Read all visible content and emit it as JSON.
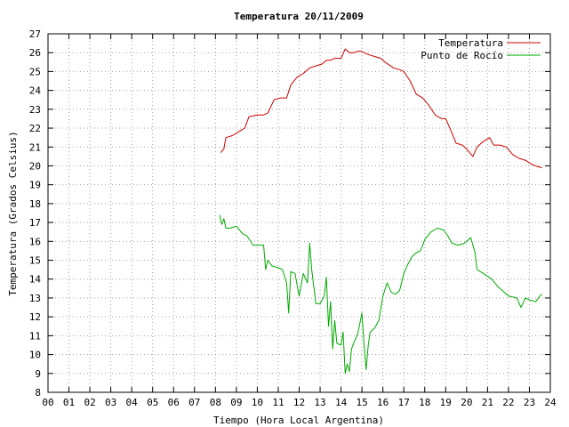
{
  "chart_data": {
    "type": "line",
    "title": "Temperatura 20/11/2009",
    "xlabel": "Tiempo (Hora Local Argentina)",
    "ylabel": "Temperatura (Grados Celsius)",
    "xlim": [
      0,
      24
    ],
    "ylim": [
      8,
      27
    ],
    "xticks": [
      "00",
      "01",
      "02",
      "03",
      "04",
      "05",
      "06",
      "07",
      "08",
      "09",
      "10",
      "11",
      "12",
      "13",
      "14",
      "15",
      "16",
      "17",
      "18",
      "19",
      "20",
      "21",
      "22",
      "23",
      "24"
    ],
    "yticks": [
      8,
      9,
      10,
      11,
      12,
      13,
      14,
      15,
      16,
      17,
      18,
      19,
      20,
      21,
      22,
      23,
      24,
      25,
      26,
      27
    ],
    "grid": true,
    "legend": "top-right",
    "series": [
      {
        "name": "Temperatura",
        "color": "#cc0000",
        "x": [
          8.25,
          8.4,
          8.5,
          8.8,
          9.1,
          9.4,
          9.6,
          10.0,
          10.3,
          10.5,
          10.8,
          11.1,
          11.4,
          11.6,
          11.9,
          12.2,
          12.5,
          12.8,
          13.1,
          13.3,
          13.5,
          13.7,
          14.0,
          14.2,
          14.4,
          14.6,
          14.9,
          15.1,
          15.3,
          15.6,
          15.9,
          16.1,
          16.5,
          16.8,
          17.0,
          17.3,
          17.6,
          17.9,
          18.2,
          18.5,
          18.8,
          19.0,
          19.2,
          19.5,
          19.8,
          20.0,
          20.3,
          20.5,
          20.8,
          21.1,
          21.3,
          21.6,
          21.9,
          22.2,
          22.5,
          22.8,
          23.1,
          23.3,
          23.6
        ],
        "y": [
          20.7,
          20.9,
          21.5,
          21.6,
          21.8,
          22.0,
          22.6,
          22.7,
          22.7,
          22.8,
          23.5,
          23.6,
          23.6,
          24.3,
          24.7,
          24.9,
          25.2,
          25.3,
          25.4,
          25.6,
          25.6,
          25.7,
          25.7,
          26.2,
          26.0,
          26.0,
          26.1,
          26.0,
          25.9,
          25.8,
          25.7,
          25.5,
          25.2,
          25.1,
          25.0,
          24.5,
          23.8,
          23.6,
          23.2,
          22.7,
          22.5,
          22.5,
          22.0,
          21.2,
          21.1,
          20.9,
          20.5,
          21.0,
          21.3,
          21.5,
          21.1,
          21.1,
          21.0,
          20.6,
          20.4,
          20.3,
          20.1,
          20.0,
          19.9
        ]
      },
      {
        "name": "Punto de Rocío",
        "color": "#00aa00",
        "x": [
          8.2,
          8.3,
          8.4,
          8.5,
          8.7,
          9.0,
          9.3,
          9.5,
          9.8,
          10.0,
          10.3,
          10.4,
          10.5,
          10.7,
          11.0,
          11.2,
          11.4,
          11.5,
          11.6,
          11.8,
          12.0,
          12.2,
          12.4,
          12.5,
          12.6,
          12.8,
          13.0,
          13.2,
          13.3,
          13.4,
          13.5,
          13.6,
          13.7,
          13.8,
          14.0,
          14.1,
          14.2,
          14.3,
          14.4,
          14.5,
          14.6,
          14.8,
          15.0,
          15.1,
          15.2,
          15.3,
          15.4,
          15.6,
          15.8,
          16.0,
          16.2,
          16.4,
          16.6,
          16.8,
          17.0,
          17.2,
          17.4,
          17.6,
          17.8,
          18.0,
          18.3,
          18.6,
          18.9,
          19.1,
          19.3,
          19.6,
          19.9,
          20.2,
          20.4,
          20.5,
          20.8,
          21.2,
          21.5,
          22.0,
          22.4,
          22.6,
          22.8,
          23.0,
          23.3,
          23.5,
          23.6
        ],
        "y": [
          17.4,
          16.9,
          17.2,
          16.7,
          16.7,
          16.8,
          16.4,
          16.3,
          15.8,
          15.8,
          15.8,
          14.5,
          15.0,
          14.7,
          14.6,
          14.5,
          13.8,
          12.2,
          14.4,
          14.3,
          13.1,
          14.3,
          13.8,
          15.9,
          14.5,
          12.7,
          12.7,
          13.1,
          14.1,
          11.5,
          12.8,
          10.3,
          11.8,
          10.6,
          10.5,
          11.2,
          9.0,
          9.5,
          9.1,
          10.3,
          10.6,
          11.1,
          12.2,
          10.5,
          9.2,
          10.5,
          11.2,
          11.4,
          11.8,
          13.1,
          13.8,
          13.3,
          13.2,
          13.4,
          14.3,
          14.8,
          15.2,
          15.4,
          15.5,
          16.1,
          16.5,
          16.7,
          16.6,
          16.3,
          15.9,
          15.8,
          15.9,
          16.2,
          15.4,
          14.5,
          14.3,
          14.0,
          13.6,
          13.1,
          13.0,
          12.5,
          13.0,
          12.9,
          12.8,
          13.1,
          13.2
        ]
      }
    ]
  }
}
